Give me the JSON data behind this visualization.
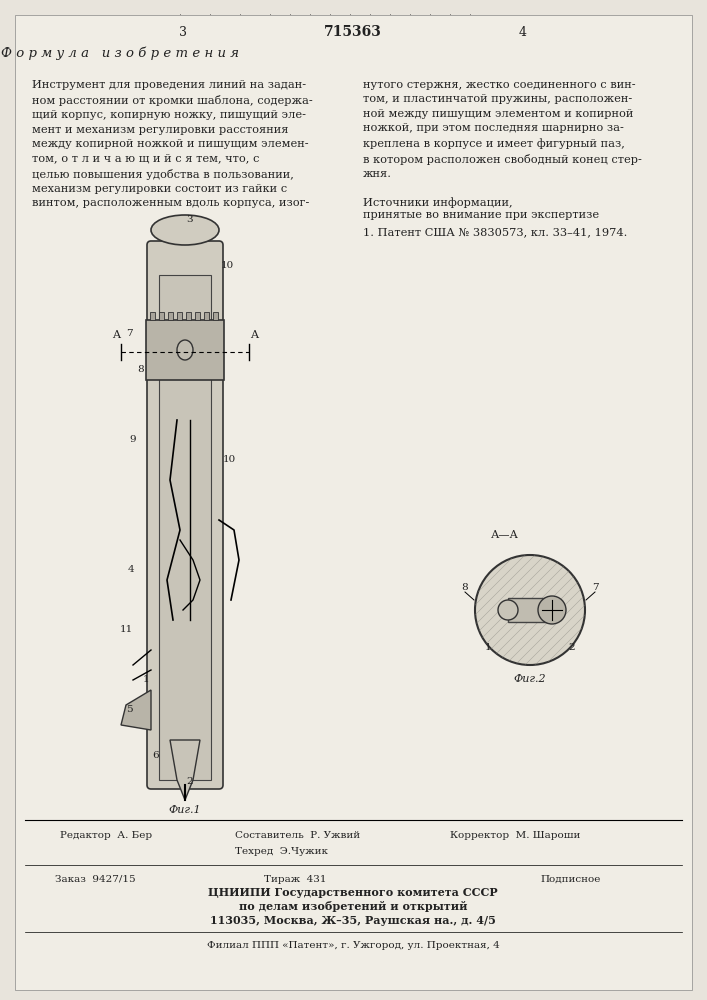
{
  "bg_color": "#f5f5f0",
  "page_color": "#f0ede5",
  "title_patent": "715363",
  "page_left": "3",
  "page_right": "4",
  "header_left": "Ф о р м у л а   и з о б р е т е н и я",
  "text_left": "Инструмент для проведения линий на задан-ном расстоянии от кромки шаблона, содержа-щий корпус, копирную ножку, пишущий эле-мент и механизм регулировки расстояния между копирной ножкой и пишущим элемен-том, о т л и ч а ю щ и й с я тем, что, с целью повышения удобства в пользовании, механизм регулировки состоит из гайки с винтом, расположенным вдоль корпуса, изог-",
  "text_right": "нутого стержня, жестко соединенного с вин-том, и пластинчатой пружины, расположен-ной между пишущим элементом и копирной ножкой, при этом последняя шарнирно за-креплена в корпусе и имеет фигурный паз, в котором расположен свободный конец стер-жня.",
  "sources_header": "Источники информации,",
  "sources_subheader": "принятые во внимание при экспертизе",
  "source1": "1. Патент США № 3830573, кл. 33–41, 1974.",
  "fig1_label": "Фиг.1",
  "fig2_label": "Фиг.2",
  "aa_label": "А—А",
  "footer_editor": "Редактор  А. Бер",
  "footer_composer": "Составитель  Р. Ужвий",
  "footer_tech": "Техред  Э.Чужик",
  "footer_corrector": "Корректор  М. Шароши",
  "footer_order": "Заказ  9427/15",
  "footer_tirazh": "Тираж  431",
  "footer_podpisnoe": "Подписное",
  "footer_org1": "ЦНИИПИ Государственного комитета СССР",
  "footer_org2": "по делам изобретений и открытий",
  "footer_address": "113035, Москва, Ж–35, Раушская на., д. 4/5",
  "footer_filial": "Филиал ППП «Патент», г. Ужгород, ул. Проектная, 4"
}
